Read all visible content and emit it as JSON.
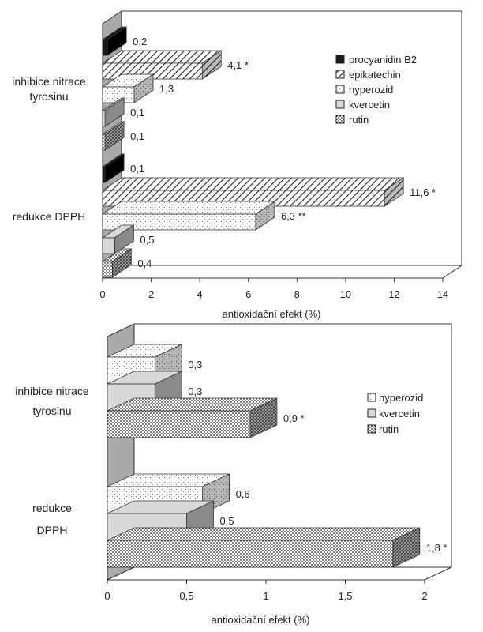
{
  "chart_data": [
    {
      "type": "bar",
      "orientation": "horizontal",
      "title": "",
      "xlabel": "antioxidační efekt (%)",
      "ylabel": "",
      "xlim": [
        0,
        14
      ],
      "xticks": [
        "0",
        "2",
        "4",
        "6",
        "8",
        "10",
        "12",
        "14"
      ],
      "grid": false,
      "legend_position": "right",
      "categories": [
        "inhibice nitrace\ntyrosinu",
        "redukce DPPH"
      ],
      "series": [
        {
          "name": "procyanidin B2",
          "values": [
            0.2,
            0.1
          ],
          "labels": [
            "0,2",
            "0,1"
          ],
          "pattern": "black"
        },
        {
          "name": "epikatechin",
          "values": [
            4.1,
            11.6
          ],
          "labels": [
            "4,1 *",
            "11,6 *"
          ],
          "pattern": "hatch"
        },
        {
          "name": "hyperozid",
          "values": [
            1.3,
            6.3
          ],
          "labels": [
            "1,3",
            "6,3 **"
          ],
          "pattern": "dots-light"
        },
        {
          "name": "kvercetin",
          "values": [
            0.1,
            0.5
          ],
          "labels": [
            "0,1",
            "0,5"
          ],
          "pattern": "gray"
        },
        {
          "name": "rutin",
          "values": [
            0.1,
            0.4
          ],
          "labels": [
            "0,1",
            "0,4"
          ],
          "pattern": "dots-dense"
        }
      ]
    },
    {
      "type": "bar",
      "orientation": "horizontal",
      "title": "",
      "xlabel": "antioxidační efekt (%)",
      "ylabel": "",
      "xlim": [
        0,
        2
      ],
      "xticks": [
        "0",
        "0,5",
        "1",
        "1,5",
        "2"
      ],
      "grid": false,
      "legend_position": "right",
      "categories": [
        "inhibice nitrace\ntyrosinu",
        "redukce\nDPPH"
      ],
      "series": [
        {
          "name": "hyperozid",
          "values": [
            0.3,
            0.6
          ],
          "labels": [
            "0,3",
            "0,6"
          ],
          "pattern": "dots-light"
        },
        {
          "name": "kvercetin",
          "values": [
            0.3,
            0.5
          ],
          "labels": [
            "0,3",
            "0,5"
          ],
          "pattern": "gray"
        },
        {
          "name": "rutin",
          "values": [
            0.9,
            1.8
          ],
          "labels": [
            "0,9 *",
            "1,8 *"
          ],
          "pattern": "dots-dense"
        }
      ]
    }
  ]
}
